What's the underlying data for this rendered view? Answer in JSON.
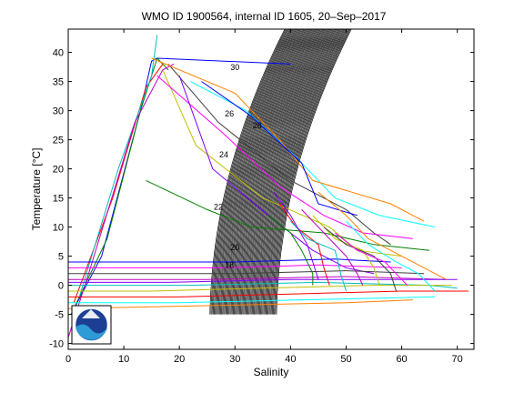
{
  "chart_data": {
    "type": "line",
    "title": "WMO ID 1900564, internal ID 1605, 20–Sep–2017",
    "xlabel": "Salinity",
    "ylabel": "Temperature [°C]",
    "xlim": [
      0,
      73
    ],
    "ylim": [
      -11,
      44
    ],
    "xticks": [
      "0",
      "10",
      "20",
      "30",
      "40",
      "50",
      "60",
      "70"
    ],
    "yticks": [
      "-10",
      "-5",
      "0",
      "5",
      "10",
      "15",
      "20",
      "25",
      "30",
      "35",
      "40"
    ],
    "grid": false,
    "logo": "NOAA",
    "isopycnal_labels": [
      {
        "text": "30",
        "x": 30,
        "y": 37
      },
      {
        "text": "28",
        "x": 34,
        "y": 27
      },
      {
        "text": "26",
        "x": 29,
        "y": 29
      },
      {
        "text": "24",
        "x": 28,
        "y": 22
      },
      {
        "text": "22",
        "x": 27,
        "y": 13
      },
      {
        "text": "20",
        "x": 30,
        "y": 6
      },
      {
        "text": "18",
        "x": 29,
        "y": 3
      }
    ],
    "series": [
      {
        "values": [
          [
            0.5,
            -5
          ],
          [
            6,
            5
          ],
          [
            13,
            30
          ],
          [
            15,
            38.5
          ],
          [
            16,
            39
          ],
          [
            40,
            38
          ]
        ]
      },
      {
        "values": [
          [
            1,
            -4
          ],
          [
            7,
            8
          ],
          [
            13,
            30
          ],
          [
            16,
            39
          ],
          [
            18,
            37
          ]
        ]
      },
      {
        "values": [
          [
            1,
            -3
          ],
          [
            8,
            15
          ],
          [
            14,
            34
          ],
          [
            17,
            38
          ]
        ]
      },
      {
        "values": [
          [
            2,
            -2
          ],
          [
            9,
            20
          ],
          [
            15,
            36
          ],
          [
            16,
            43
          ]
        ]
      },
      {
        "values": [
          [
            0,
            -9
          ],
          [
            4,
            3
          ],
          [
            12,
            28
          ],
          [
            17,
            37
          ],
          [
            19,
            38
          ]
        ]
      },
      {
        "values": [
          [
            17,
            37
          ],
          [
            23,
            24
          ],
          [
            35,
            15
          ],
          [
            47,
            10
          ],
          [
            52,
            6
          ],
          [
            60,
            5
          ]
        ]
      },
      {
        "values": [
          [
            18,
            38
          ],
          [
            27,
            28
          ],
          [
            40,
            18
          ],
          [
            50,
            13
          ],
          [
            55,
            9
          ],
          [
            58,
            7
          ]
        ]
      },
      {
        "values": [
          [
            16,
            36
          ],
          [
            28,
            26
          ],
          [
            38,
            17
          ],
          [
            46,
            12
          ],
          [
            53,
            9
          ],
          [
            62,
            8
          ]
        ]
      },
      {
        "values": [
          [
            22,
            35
          ],
          [
            32,
            30
          ],
          [
            41,
            22
          ],
          [
            48,
            15
          ],
          [
            56,
            12
          ],
          [
            66,
            10
          ]
        ]
      },
      {
        "values": [
          [
            20,
            36
          ],
          [
            26,
            20
          ],
          [
            36,
            12
          ],
          [
            44,
            6
          ],
          [
            50,
            3
          ],
          [
            55,
            2
          ]
        ]
      },
      {
        "values": [
          [
            15,
            39
          ],
          [
            30,
            33
          ],
          [
            38,
            25
          ],
          [
            44,
            18
          ],
          [
            58,
            14
          ],
          [
            64,
            11
          ]
        ]
      },
      {
        "values": [
          [
            24,
            35
          ],
          [
            33,
            29
          ],
          [
            42,
            21
          ],
          [
            45,
            14
          ],
          [
            52,
            12
          ]
        ]
      },
      {
        "values": [
          [
            14,
            18
          ],
          [
            25,
            13
          ],
          [
            33,
            10
          ],
          [
            46,
            9
          ],
          [
            55,
            7
          ],
          [
            65,
            6
          ]
        ]
      },
      {
        "values": [
          [
            0,
            -2
          ],
          [
            20,
            -2
          ],
          [
            40,
            -1.5
          ],
          [
            60,
            -1
          ],
          [
            72,
            -1
          ]
        ]
      },
      {
        "values": [
          [
            0,
            0
          ],
          [
            22,
            0
          ],
          [
            45,
            0.5
          ],
          [
            65,
            0
          ],
          [
            70,
            -0.5
          ]
        ]
      },
      {
        "values": [
          [
            0,
            1
          ],
          [
            25,
            1
          ],
          [
            50,
            1.5
          ],
          [
            68,
            1
          ]
        ]
      },
      {
        "values": [
          [
            0,
            -1
          ],
          [
            15,
            -1
          ],
          [
            35,
            -0.5
          ],
          [
            55,
            0
          ],
          [
            69,
            0
          ]
        ]
      },
      {
        "values": [
          [
            0,
            2
          ],
          [
            30,
            2
          ],
          [
            50,
            2.5
          ],
          [
            64,
            2
          ]
        ]
      },
      {
        "values": [
          [
            0,
            3
          ],
          [
            28,
            3
          ],
          [
            45,
            3.5
          ],
          [
            60,
            3
          ]
        ]
      },
      {
        "values": [
          [
            0,
            -3
          ],
          [
            20,
            -3
          ],
          [
            42,
            -2.5
          ],
          [
            66,
            -2
          ]
        ]
      },
      {
        "values": [
          [
            0,
            0.5
          ],
          [
            18,
            0.5
          ],
          [
            40,
            1
          ],
          [
            70,
            1
          ]
        ]
      },
      {
        "values": [
          [
            0,
            -4
          ],
          [
            25,
            -3.5
          ],
          [
            50,
            -3
          ],
          [
            62,
            -2.5
          ]
        ]
      },
      {
        "values": [
          [
            0,
            4
          ],
          [
            30,
            4
          ],
          [
            48,
            4.5
          ],
          [
            58,
            4
          ]
        ]
      },
      {
        "values": [
          [
            36,
            12
          ],
          [
            40,
            9
          ],
          [
            42,
            6
          ],
          [
            44,
            2
          ],
          [
            44,
            0
          ]
        ]
      },
      {
        "values": [
          [
            38,
            14
          ],
          [
            41,
            10
          ],
          [
            45,
            7
          ],
          [
            46,
            3
          ],
          [
            47,
            0
          ]
        ]
      },
      {
        "values": [
          [
            40,
            11
          ],
          [
            43,
            8
          ],
          [
            48,
            6
          ],
          [
            49,
            2
          ],
          [
            50,
            -1
          ]
        ]
      },
      {
        "values": [
          [
            42,
            13
          ],
          [
            46,
            9
          ],
          [
            50,
            5
          ],
          [
            52,
            2
          ],
          [
            53,
            0
          ]
        ]
      },
      {
        "values": [
          [
            44,
            12
          ],
          [
            48,
            8
          ],
          [
            53,
            6
          ],
          [
            55,
            3
          ],
          [
            56,
            0
          ]
        ]
      },
      {
        "values": [
          [
            46,
            10
          ],
          [
            50,
            7
          ],
          [
            55,
            5
          ],
          [
            58,
            2
          ],
          [
            59,
            -1
          ]
        ]
      },
      {
        "values": [
          [
            48,
            9
          ],
          [
            52,
            6
          ],
          [
            57,
            4
          ],
          [
            60,
            1
          ],
          [
            61,
            0
          ]
        ]
      },
      {
        "values": [
          [
            50,
            11
          ],
          [
            54,
            7
          ],
          [
            59,
            4
          ],
          [
            63,
            2
          ],
          [
            66,
            -1
          ]
        ]
      },
      {
        "values": [
          [
            37,
            16
          ],
          [
            40,
            12
          ],
          [
            43,
            7
          ],
          [
            44,
            4
          ],
          [
            45,
            1
          ]
        ]
      },
      {
        "values": [
          [
            45,
            16
          ],
          [
            50,
            12
          ],
          [
            54,
            8
          ],
          [
            60,
            5
          ],
          [
            68,
            1
          ]
        ]
      }
    ],
    "colors": [
      "#0000ff",
      "#008000",
      "#ff0000",
      "#00bfbf",
      "#bf00bf",
      "#bfbf00",
      "#3f3f3f",
      "#ff00ff",
      "#00ffff",
      "#8000ff",
      "#ff8000"
    ]
  }
}
